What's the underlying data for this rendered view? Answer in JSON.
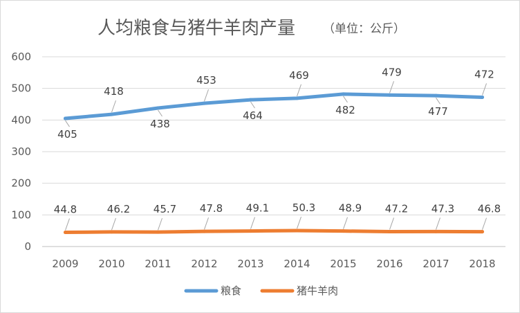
{
  "chart_data": {
    "type": "line",
    "title": "人均粮食与猪牛羊肉产量",
    "title_unit": "（单位：公斤）",
    "xlabel": "",
    "ylabel": "",
    "categories": [
      "2009",
      "2010",
      "2011",
      "2012",
      "2013",
      "2014",
      "2015",
      "2016",
      "2017",
      "2018"
    ],
    "ylim": [
      0,
      600
    ],
    "yticks": [
      0,
      100,
      200,
      300,
      400,
      500,
      600
    ],
    "grid": true,
    "legend_position": "bottom",
    "series": [
      {
        "name": "粮食",
        "color": "#5b9bd5",
        "values": [
          405,
          418,
          438,
          453,
          464,
          469,
          482,
          479,
          477,
          472
        ],
        "labels": [
          "405",
          "418",
          "438",
          "453",
          "464",
          "469",
          "482",
          "479",
          "477",
          "472"
        ]
      },
      {
        "name": "猪牛羊肉",
        "color": "#ed7d31",
        "values": [
          44.8,
          46.2,
          45.7,
          47.8,
          49.1,
          50.3,
          48.9,
          47.2,
          47.3,
          46.8
        ],
        "labels": [
          "44.8",
          "46.2",
          "45.7",
          "47.8",
          "49.1",
          "50.3",
          "48.9",
          "47.2",
          "47.3",
          "46.8"
        ]
      }
    ]
  }
}
